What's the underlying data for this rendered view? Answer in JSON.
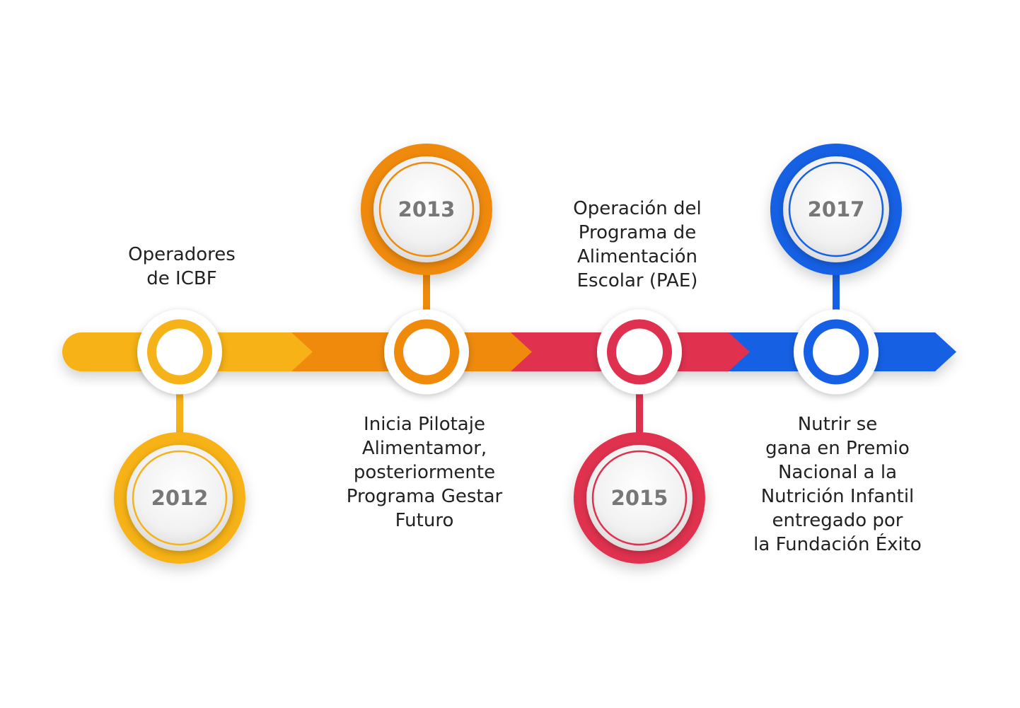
{
  "milestones": [
    {
      "year": "2012",
      "text": "Operadores\nde ICBF",
      "color": "#F6B219",
      "color_dark": "#E99A0C"
    },
    {
      "year": "2013",
      "text": "Inicia Pilotaje\nAlimentamor,\nposteriormente\nPrograma Gestar\nFuturo",
      "color": "#EF8A0A",
      "color_dark": "#DE7208"
    },
    {
      "year": "2015",
      "text": "Operación del\nPrograma de\nAlimentación\nEscolar (PAE)",
      "color": "#E0304F",
      "color_dark": "#C8213F"
    },
    {
      "year": "2017",
      "text": "Nutrir se\ngana en Premio\nNacional a la\nNutrición Infantil\nentregado por\nla Fundación Éxito",
      "color": "#1560E4",
      "color_dark": "#0C48C8"
    }
  ]
}
